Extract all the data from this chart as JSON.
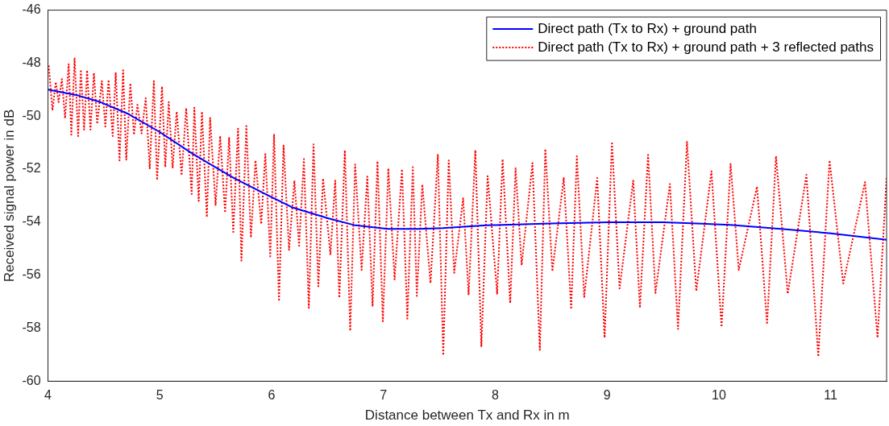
{
  "chart_data": {
    "type": "line",
    "xlabel": "Distance between Tx and Rx in m",
    "ylabel": "Received signal power in dB",
    "xlim": [
      4,
      11.5
    ],
    "ylim": [
      -60,
      -46
    ],
    "xticks": [
      4,
      5,
      6,
      7,
      8,
      9,
      10,
      11
    ],
    "yticks": [
      -60,
      -58,
      -56,
      -54,
      -52,
      -50,
      -48,
      -46
    ],
    "grid": false,
    "legend": "top right",
    "marker": "none",
    "series": [
      {
        "name": "Direct path (Tx to Rx) + ground path",
        "color": "#0000ff",
        "line_style": "solid",
        "x": [
          4,
          4.27,
          4.47,
          4.71,
          5,
          5.29,
          5.66,
          5.95,
          6.19,
          6.51,
          6.75,
          7.04,
          7.31,
          7.53,
          7.92,
          8.07,
          8.5,
          9.01,
          9.5,
          9.8,
          10.1,
          10.6,
          11.0,
          11.5
        ],
        "values": [
          -49.0,
          -49.22,
          -49.47,
          -49.9,
          -50.6,
          -51.41,
          -52.33,
          -52.95,
          -53.45,
          -53.86,
          -54.12,
          -54.25,
          -54.25,
          -54.22,
          -54.12,
          -54.1,
          -54.05,
          -54.0,
          -54.0,
          -54.05,
          -54.1,
          -54.27,
          -54.42,
          -54.66
        ]
      },
      {
        "name": "Direct path (Tx to Rx) + ground path + 3 reflected paths",
        "color": "#ff0000",
        "line_style": "dotted",
        "x": [
          4.007,
          4.04,
          4.07,
          4.095,
          4.124,
          4.153,
          4.185,
          4.209,
          4.238,
          4.27,
          4.294,
          4.323,
          4.35,
          4.38,
          4.411,
          4.44,
          4.482,
          4.513,
          4.542,
          4.579,
          4.606,
          4.64,
          4.672,
          4.7,
          4.737,
          4.769,
          4.8,
          4.837,
          4.874,
          4.91,
          4.947,
          4.976,
          5.02,
          5.049,
          5.08,
          5.115,
          5.151,
          5.195,
          5.236,
          5.285,
          5.309,
          5.348,
          5.377,
          5.421,
          5.45,
          5.499,
          5.54,
          5.584,
          5.62,
          5.657,
          5.7,
          5.73,
          5.774,
          5.815,
          5.856,
          5.907,
          5.944,
          5.988,
          6.022,
          6.066,
          6.107,
          6.156,
          6.204,
          6.246,
          6.289,
          6.333,
          6.375,
          6.418,
          6.46,
          6.526,
          6.569,
          6.606,
          6.655,
          6.703,
          6.747,
          6.805,
          6.856,
          6.903,
          6.947,
          6.995,
          7.044,
          7.1,
          7.166,
          7.214,
          7.263,
          7.299,
          7.348,
          7.421,
          7.487,
          7.535,
          7.584,
          7.633,
          7.713,
          7.762,
          7.822,
          7.876,
          7.932,
          8.017,
          8.066,
          8.134,
          8.182,
          8.236,
          8.333,
          8.399,
          8.448,
          8.511,
          8.613,
          8.679,
          8.73,
          8.796,
          8.912,
          8.978,
          9.044,
          9.112,
          9.234,
          9.294,
          9.367,
          9.433,
          9.562,
          9.635,
          9.715,
          9.798,
          9.934,
          10.024,
          10.105,
          10.178,
          10.341,
          10.431,
          10.511,
          10.616,
          10.783,
          10.889,
          10.99,
          11.112,
          11.307,
          11.419,
          11.5
        ],
        "values": [
          -48.09,
          -49.78,
          -48.71,
          -49.47,
          -48.6,
          -50.08,
          -48.04,
          -50.7,
          -47.82,
          -50.75,
          -48.25,
          -50.51,
          -48.27,
          -50.51,
          -48.37,
          -50.29,
          -48.68,
          -50.39,
          -48.63,
          -50.75,
          -48.35,
          -51.67,
          -48.27,
          -51.64,
          -48.76,
          -50.7,
          -49.57,
          -50.65,
          -49.32,
          -51.97,
          -48.68,
          -52.41,
          -48.88,
          -51.92,
          -49.47,
          -51.94,
          -49.83,
          -52.23,
          -49.7,
          -52.94,
          -49.68,
          -53.2,
          -49.83,
          -53.81,
          -50.07,
          -53.35,
          -50.75,
          -53.64,
          -50.82,
          -54.37,
          -50.47,
          -55.45,
          -50.37,
          -54.58,
          -51.67,
          -54.07,
          -51.43,
          -55.29,
          -50.7,
          -56.98,
          -51.11,
          -55.04,
          -52.43,
          -54.89,
          -51.62,
          -57.23,
          -51.06,
          -56.42,
          -52.35,
          -55.21,
          -52.43,
          -56.85,
          -51.29,
          -58.1,
          -51.82,
          -55.8,
          -52.28,
          -57.18,
          -51.7,
          -57.74,
          -51.97,
          -56.16,
          -52.0,
          -57.64,
          -51.92,
          -56.78,
          -52.58,
          -56.3,
          -51.46,
          -59.02,
          -51.67,
          -55.91,
          -53.1,
          -56.75,
          -51.28,
          -58.68,
          -52.26,
          -56.7,
          -51.62,
          -57.05,
          -51.97,
          -55.62,
          -51.77,
          -58.82,
          -51.24,
          -55.85,
          -52.33,
          -57.28,
          -51.51,
          -56.82,
          -52.33,
          -58.36,
          -50.97,
          -56.5,
          -52.43,
          -57.23,
          -51.46,
          -56.67,
          -52.56,
          -58.03,
          -50.97,
          -56.6,
          -52.08,
          -57.95,
          -51.8,
          -55.8,
          -52.66,
          -57.85,
          -51.51,
          -56.7,
          -52.21,
          -59.07,
          -51.67,
          -56.31,
          -52.49,
          -58.36,
          -52.33
        ]
      }
    ]
  }
}
